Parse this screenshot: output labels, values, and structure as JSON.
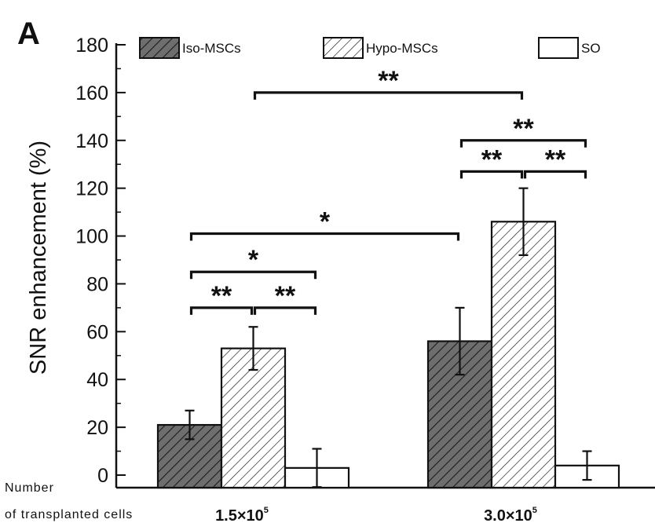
{
  "panel_label": "A",
  "x_title_lines": [
    "Number",
    "of transplanted cells"
  ],
  "chart_data": {
    "type": "bar",
    "title": "",
    "ylabel": "SNR enhancement (%)",
    "xlabel": "Number of transplanted cells",
    "categories": [
      {
        "base": "1.5",
        "times": "×",
        "mant": "10",
        "exp": "5"
      },
      {
        "base": "3.0",
        "times": "×",
        "mant": "10",
        "exp": "5"
      }
    ],
    "series": [
      {
        "name": "Iso-MSCs",
        "values": [
          21,
          56
        ],
        "errors": [
          6,
          14
        ],
        "fill": "hatch-dark"
      },
      {
        "name": "Hypo-MSCs",
        "values": [
          53,
          106
        ],
        "errors": [
          9,
          14
        ],
        "fill": "hatch-light"
      },
      {
        "name": "SO",
        "values": [
          3,
          4
        ],
        "errors": [
          8,
          6
        ],
        "fill": "open"
      }
    ],
    "ylim": [
      0,
      180
    ],
    "yticks": [
      0,
      20,
      40,
      60,
      80,
      100,
      120,
      140,
      160,
      180
    ],
    "grid": false,
    "legend_position": "top",
    "significance": [
      {
        "label": "**",
        "from": [
          0,
          0
        ],
        "to": [
          0,
          1
        ],
        "y": 70
      },
      {
        "label": "**",
        "from": [
          0,
          1
        ],
        "to": [
          0,
          2
        ],
        "y": 70
      },
      {
        "label": "*",
        "from": [
          0,
          0
        ],
        "to": [
          0,
          2
        ],
        "y": 85
      },
      {
        "label": "*",
        "from": [
          0,
          0
        ],
        "to": [
          1,
          0
        ],
        "y": 101
      },
      {
        "label": "**",
        "from": [
          1,
          0
        ],
        "to": [
          1,
          1
        ],
        "y": 127
      },
      {
        "label": "**",
        "from": [
          1,
          1
        ],
        "to": [
          1,
          2
        ],
        "y": 127
      },
      {
        "label": "**",
        "from": [
          1,
          0
        ],
        "to": [
          1,
          2
        ],
        "y": 140
      },
      {
        "label": "**",
        "from": [
          0,
          1
        ],
        "to": [
          1,
          1
        ],
        "y": 160
      }
    ],
    "colors": {
      "dark_fill": "#6e6e6e",
      "light_fill": "#ffffff",
      "stroke": "#111111"
    }
  }
}
